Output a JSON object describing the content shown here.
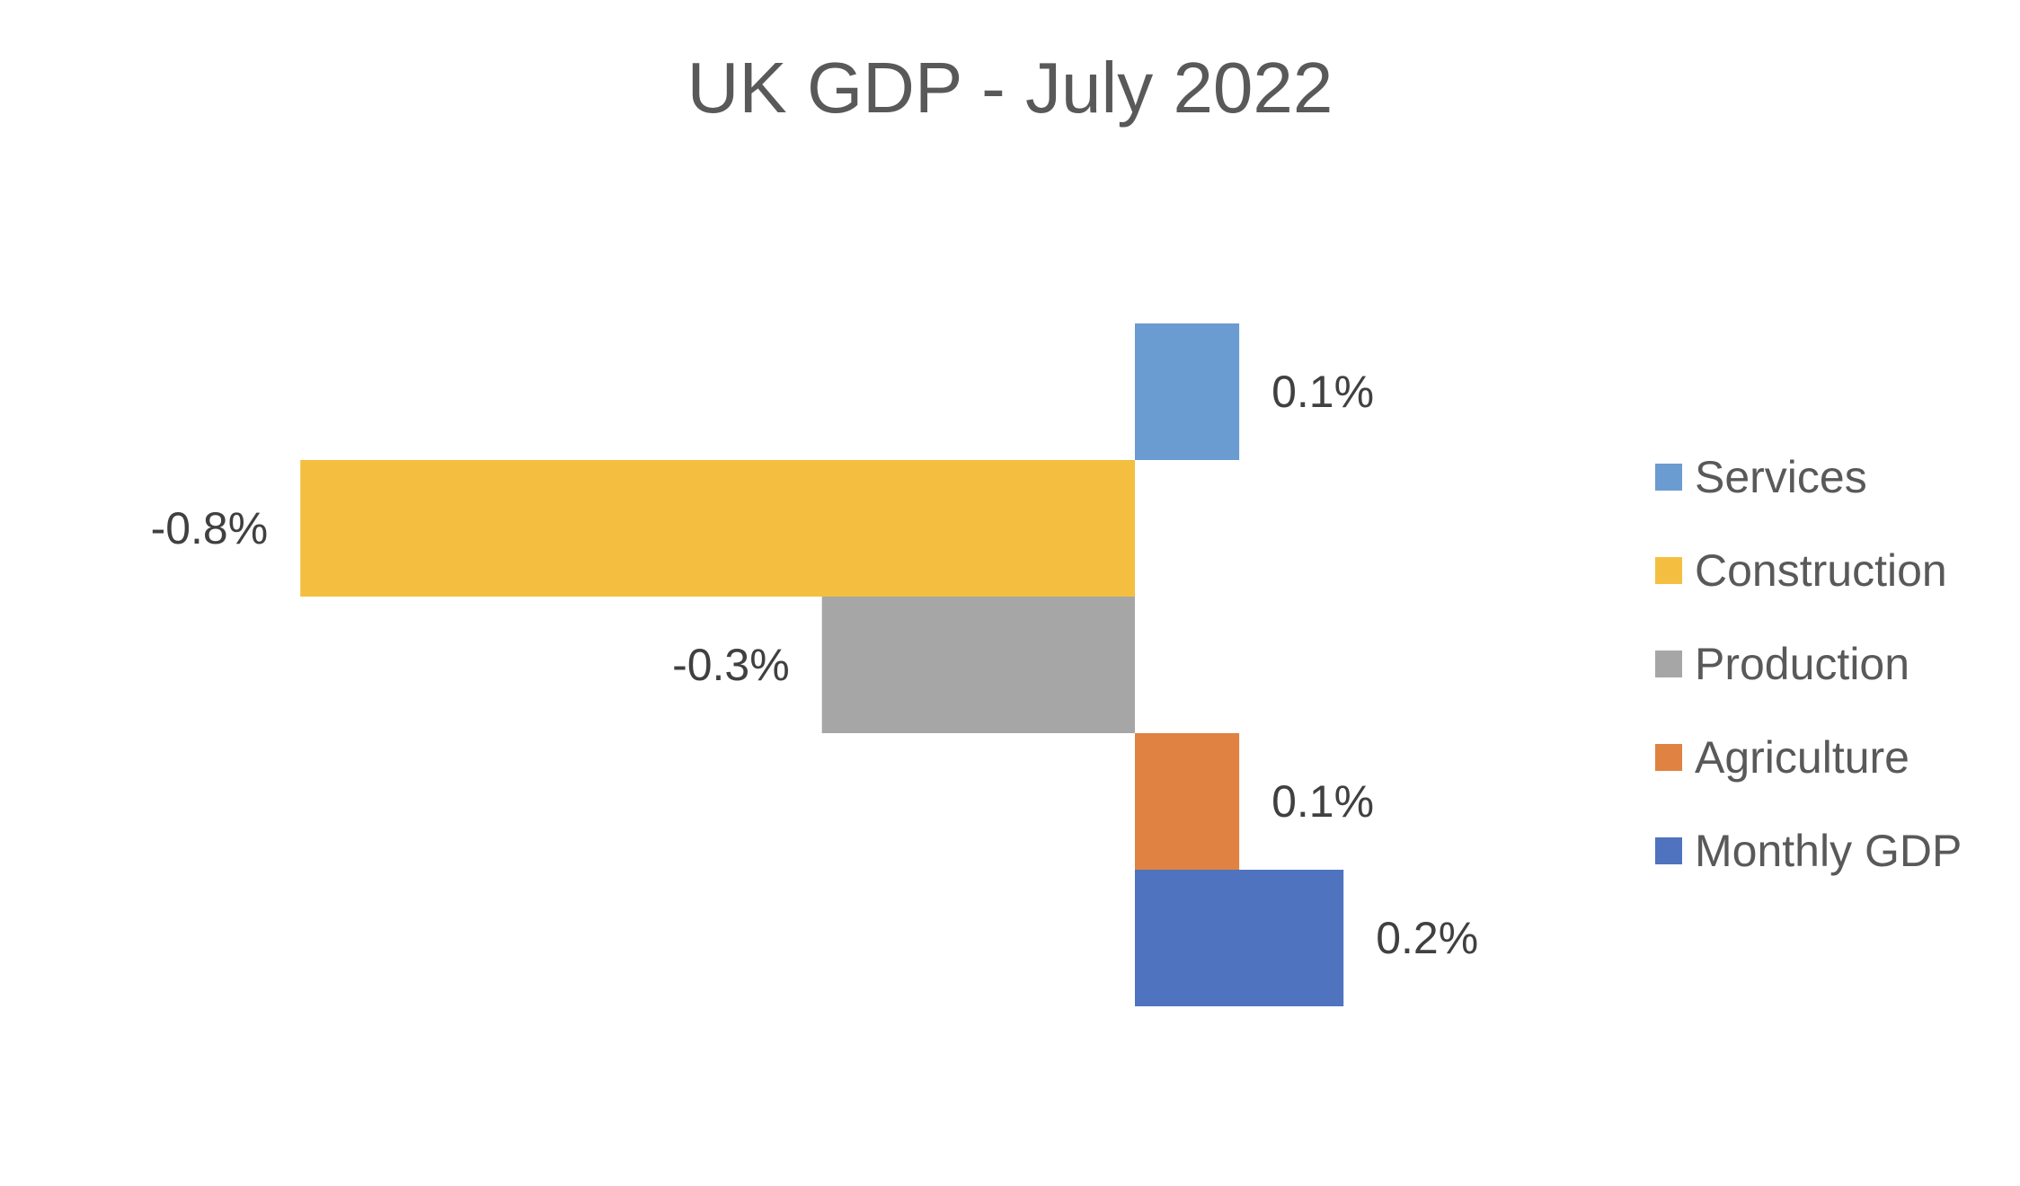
{
  "chart_data": {
    "type": "bar",
    "orientation": "horizontal",
    "title": "UK GDP - July 2022",
    "xlabel": "",
    "ylabel": "",
    "xlim": [
      -0.9,
      0.4
    ],
    "grid": false,
    "legend_position": "right",
    "value_suffix": "%",
    "series": [
      {
        "name": "Services",
        "value": 0.1,
        "label": "0.1%",
        "color": "#6A9BD1"
      },
      {
        "name": "Construction",
        "value": -0.8,
        "label": "-0.8%",
        "color": "#F4BF41"
      },
      {
        "name": "Production",
        "value": -0.3,
        "label": "-0.3%",
        "color": "#A6A6A6"
      },
      {
        "name": "Agriculture",
        "value": 0.1,
        "label": "0.1%",
        "color": "#E08242"
      },
      {
        "name": "Monthly GDP",
        "value": 0.2,
        "label": "0.2%",
        "color": "#4F73BE"
      }
    ]
  }
}
